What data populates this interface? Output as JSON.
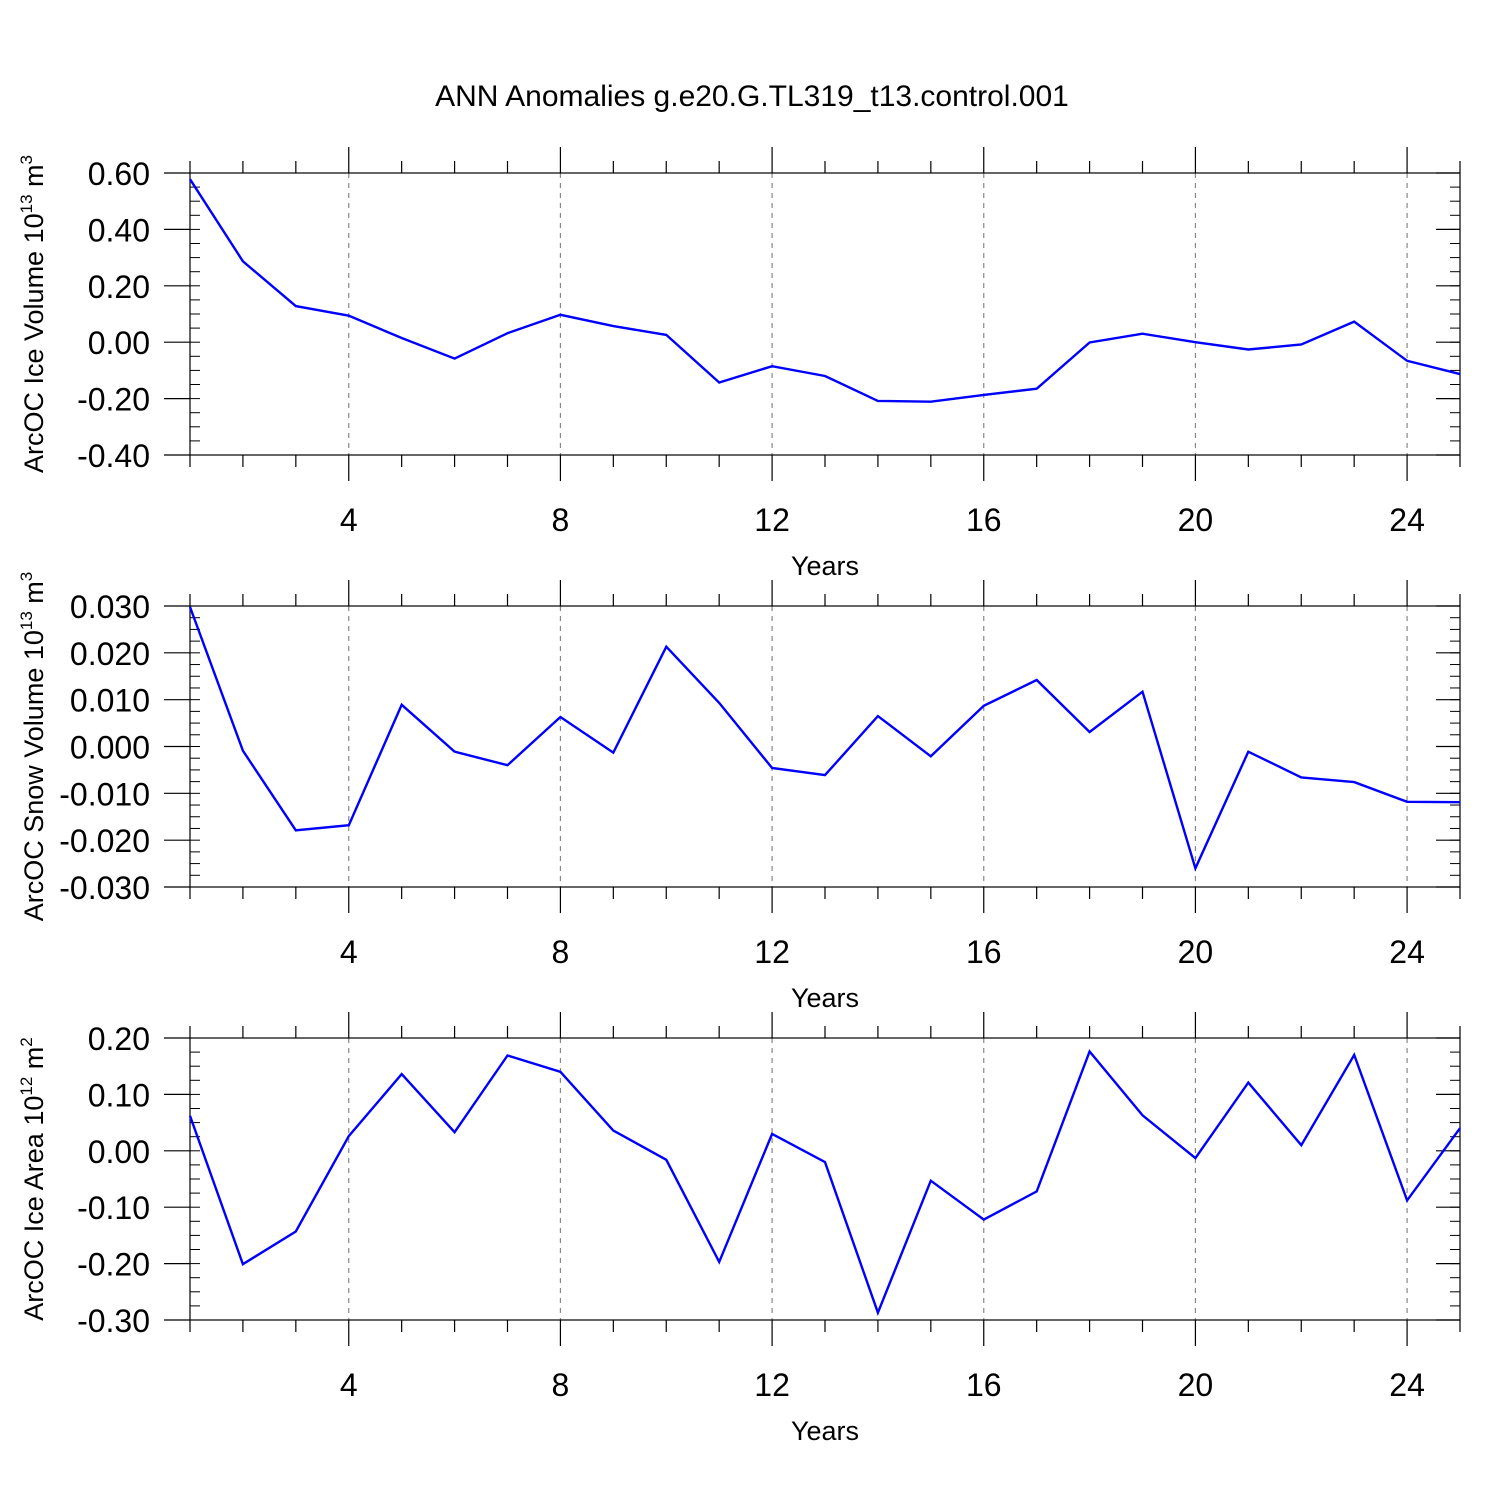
{
  "title": "ANN Anomalies g.e20.G.TL319_t13.control.001",
  "colors": {
    "line": "#0000ff",
    "axes": "#000000",
    "grid": "#888888"
  },
  "chart_data": [
    {
      "type": "line",
      "ylabel": {
        "text": "ArcOC Ice Volume 10",
        "exp": "13",
        "unit": " m",
        "unit_exp": "3"
      },
      "xlabel": "Years",
      "xlim": [
        1,
        25
      ],
      "ylim": [
        -0.4,
        0.6
      ],
      "xticks": [
        4,
        8,
        12,
        16,
        20,
        24
      ],
      "yticks": [
        -0.4,
        -0.2,
        0.0,
        0.2,
        0.4,
        0.6
      ],
      "ytick_labels": [
        "-0.40",
        "-0.20",
        "0.00",
        "0.20",
        "0.40",
        "0.60"
      ],
      "y_minor_step": 0.05,
      "grid": "vertical dashed at x ticks",
      "x": [
        1,
        2,
        3,
        4,
        5,
        6,
        7,
        8,
        9,
        10,
        11,
        12,
        13,
        14,
        15,
        16,
        17,
        18,
        19,
        20,
        21,
        22,
        23,
        24,
        25
      ],
      "values": [
        0.578,
        0.287,
        0.128,
        0.094,
        0.015,
        -0.058,
        0.032,
        0.097,
        0.057,
        0.026,
        -0.143,
        -0.085,
        -0.12,
        -0.208,
        -0.211,
        -0.187,
        -0.165,
        -0.001,
        0.03,
        0.0,
        -0.026,
        -0.008,
        0.073,
        -0.066,
        -0.113
      ]
    },
    {
      "type": "line",
      "ylabel": {
        "text": "ArcOC Snow Volume 10",
        "exp": "13",
        "unit": " m",
        "unit_exp": "3"
      },
      "xlabel": "Years",
      "xlim": [
        1,
        25
      ],
      "ylim": [
        -0.03,
        0.03
      ],
      "xticks": [
        4,
        8,
        12,
        16,
        20,
        24
      ],
      "yticks": [
        -0.03,
        -0.02,
        -0.01,
        0.0,
        0.01,
        0.02,
        0.03
      ],
      "ytick_labels": [
        "-0.030",
        "-0.020",
        "-0.010",
        "0.000",
        "0.010",
        "0.020",
        "0.030"
      ],
      "y_minor_step": 0.0025,
      "grid": "vertical dashed at x ticks",
      "x": [
        1,
        2,
        3,
        4,
        5,
        6,
        7,
        8,
        9,
        10,
        11,
        12,
        13,
        14,
        15,
        16,
        17,
        18,
        19,
        20,
        21,
        22,
        23,
        24,
        25
      ],
      "values": [
        0.0298,
        -0.0009,
        -0.0179,
        -0.0168,
        0.0089,
        -0.0011,
        -0.004,
        0.0063,
        -0.0013,
        0.0213,
        0.0093,
        -0.0046,
        -0.0061,
        0.0065,
        -0.0021,
        0.0087,
        0.0142,
        0.0031,
        0.0117,
        -0.026,
        -0.0011,
        -0.0066,
        -0.0076,
        -0.0118,
        -0.0119
      ]
    },
    {
      "type": "line",
      "ylabel": {
        "text": "ArcOC Ice Area 10",
        "exp": "12",
        "unit": " m",
        "unit_exp": "2"
      },
      "xlabel": "Years",
      "xlim": [
        1,
        25
      ],
      "ylim": [
        -0.3,
        0.2
      ],
      "xticks": [
        4,
        8,
        12,
        16,
        20,
        24
      ],
      "yticks": [
        -0.3,
        -0.2,
        -0.1,
        0.0,
        0.1,
        0.2
      ],
      "ytick_labels": [
        "-0.30",
        "-0.20",
        "-0.10",
        "0.00",
        "0.10",
        "0.20"
      ],
      "y_minor_step": 0.025,
      "grid": "vertical dashed at x ticks",
      "x": [
        1,
        2,
        3,
        4,
        5,
        6,
        7,
        8,
        9,
        10,
        11,
        12,
        13,
        14,
        15,
        16,
        17,
        18,
        19,
        20,
        21,
        22,
        23,
        24,
        25
      ],
      "values": [
        0.062,
        -0.201,
        -0.143,
        0.026,
        0.136,
        0.033,
        0.169,
        0.14,
        0.036,
        -0.016,
        -0.197,
        0.03,
        -0.02,
        -0.287,
        -0.053,
        -0.122,
        -0.072,
        0.176,
        0.063,
        -0.013,
        0.121,
        0.01,
        0.17,
        -0.088,
        0.04
      ]
    }
  ]
}
